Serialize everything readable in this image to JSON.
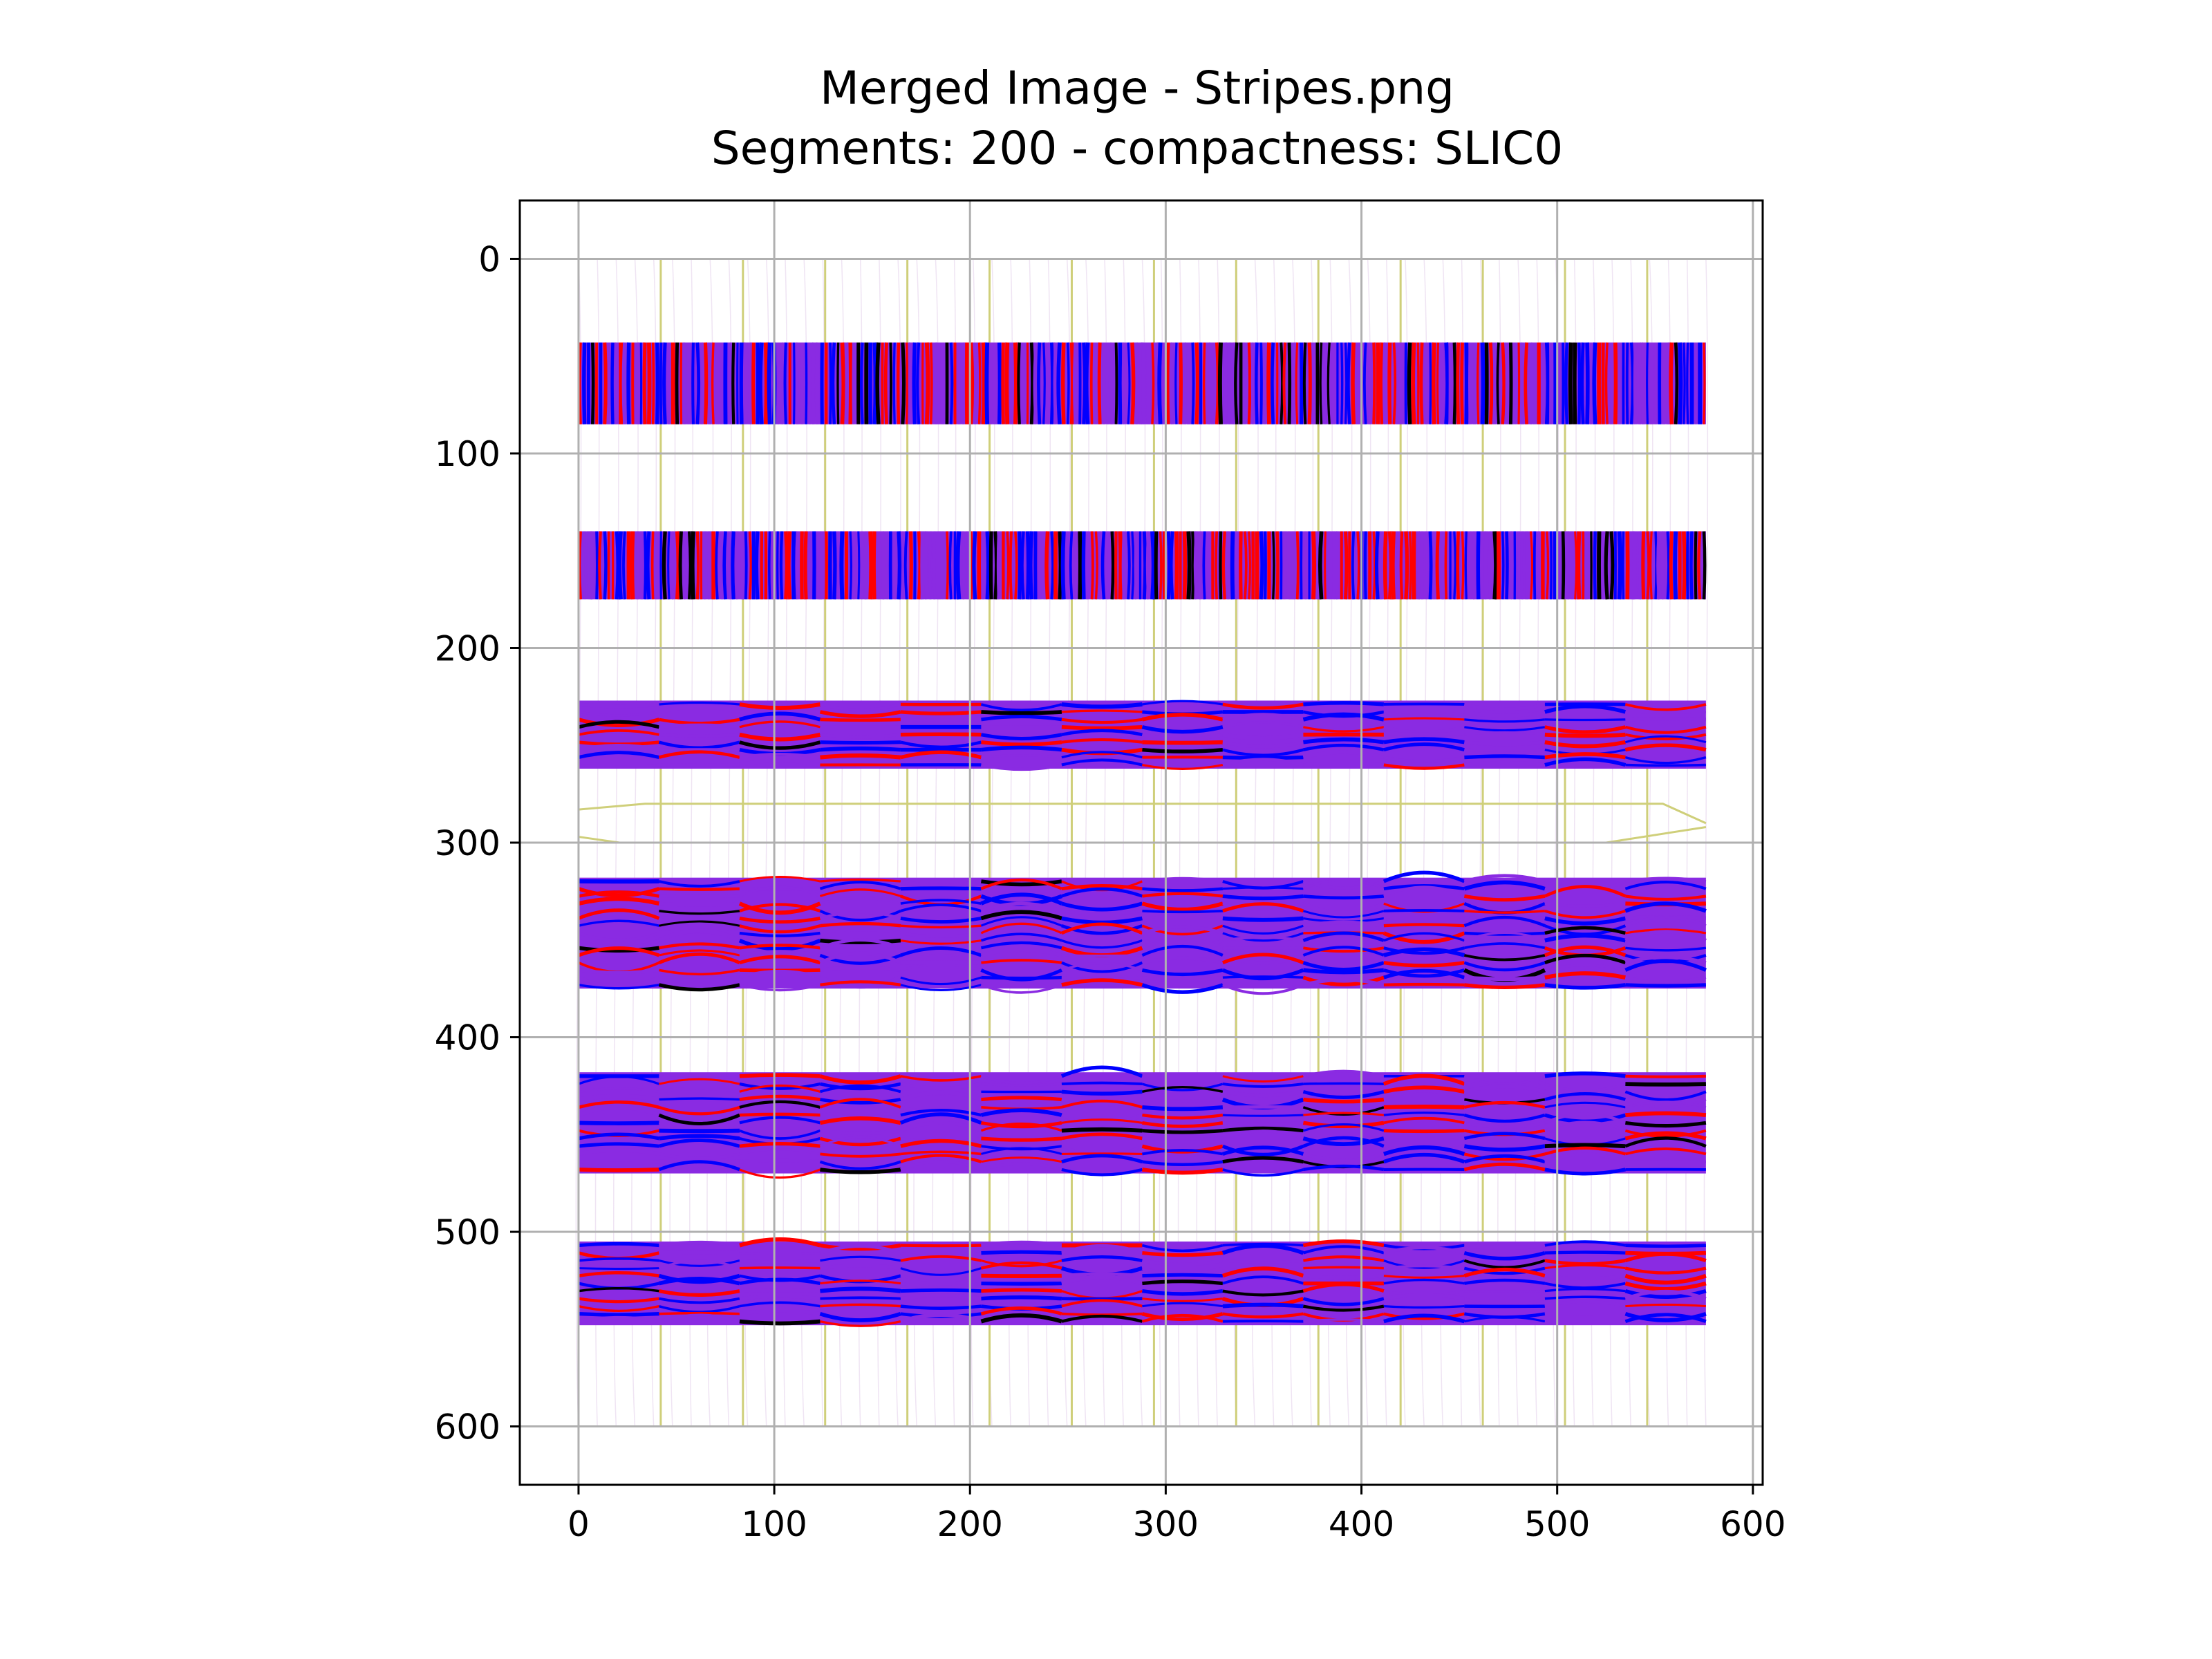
{
  "chart_data": {
    "type": "heatmap",
    "title": "Merged Image - Stripes.png",
    "subtitle": "Segments: 200 - compactness: SLIC0",
    "xlabel": "",
    "ylabel": "",
    "xlim": [
      -30,
      605
    ],
    "ylim": [
      630,
      -30
    ],
    "y_inverted": true,
    "grid": true,
    "legend": "none",
    "x_ticks": [
      "0",
      "100",
      "200",
      "300",
      "400",
      "500",
      "600"
    ],
    "y_ticks": [
      "0",
      "100",
      "200",
      "300",
      "400",
      "500",
      "600"
    ],
    "image_extent": {
      "x": [
        0,
        576
      ],
      "y": [
        0,
        600
      ]
    },
    "stripes": [
      {
        "y_start": 43,
        "y_end": 85,
        "flow": "vertical"
      },
      {
        "y_start": 140,
        "y_end": 175,
        "flow": "vertical"
      },
      {
        "y_start": 227,
        "y_end": 262,
        "flow": "horizontal"
      },
      {
        "y_start": 318,
        "y_end": 375,
        "flow": "horizontal"
      },
      {
        "y_start": 418,
        "y_end": 470,
        "flow": "horizontal"
      },
      {
        "y_start": 505,
        "y_end": 548,
        "flow": "horizontal"
      }
    ],
    "segment_boundary_x": [
      42,
      84,
      126,
      168,
      210,
      252,
      294,
      336,
      378,
      420,
      462,
      504,
      546
    ],
    "hexagon_row": {
      "y_center": 290,
      "y_half": 10
    },
    "colors": {
      "primary": "#ff0000",
      "secondary": "#0000ff",
      "blend": "#8a2be2",
      "core": "#000000",
      "boundary": "#cfcf7a",
      "faint_flow": "#e8d8ee",
      "grid": "#b0b0b0",
      "axes": "#000000"
    }
  }
}
